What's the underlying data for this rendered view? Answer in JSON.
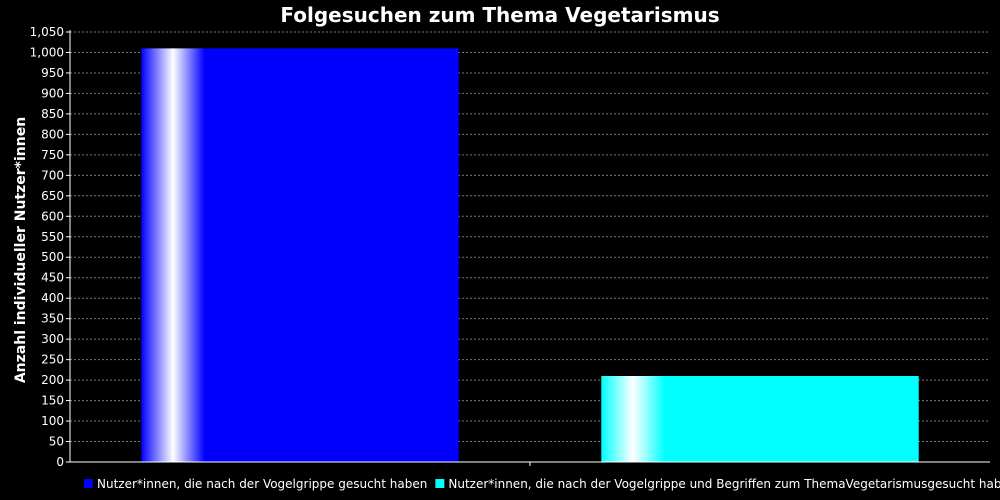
{
  "chart_data": {
    "type": "bar",
    "title": "Folgesuchen zum Thema Vegetarismus",
    "xlabel": "",
    "ylabel": "Anzahl individueller Nutzer*innen",
    "ylim": [
      0,
      1050
    ],
    "ytick_step": 50,
    "grid": true,
    "legend_position": "bottom",
    "series": [
      {
        "name": "Nutzer*innen, die nach der Vogelgrippe gesucht haben",
        "value": 1010,
        "color": "#0000ff"
      },
      {
        "name": "Nutzer*innen, die nach der Vogelgrippe und Begriffen zum ThemaVegetarismusgesucht haben",
        "value": 210,
        "color": "#00ffff"
      }
    ]
  },
  "colors": {
    "background": "#000000",
    "text": "#ffffff",
    "grid": "#777777"
  }
}
